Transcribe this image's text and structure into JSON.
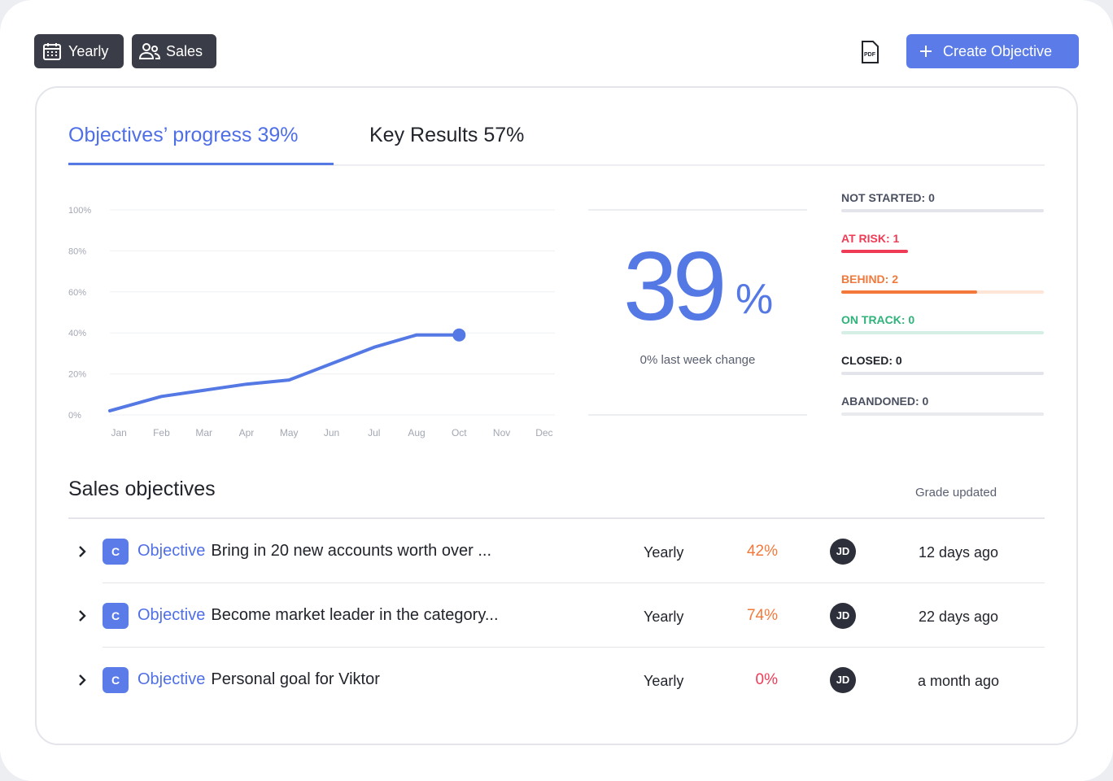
{
  "toolbar": {
    "filters": [
      "Yearly",
      "Sales"
    ],
    "pdf_label": "PDF",
    "create_button": "Create Objective"
  },
  "tabs": [
    "Objectives’ progress 39%",
    "Key Results 57%"
  ],
  "chart_data": {
    "type": "line",
    "categories": [
      "Jan",
      "Feb",
      "Mar",
      "Apr",
      "May",
      "Jun",
      "Jul",
      "Aug",
      "Oct",
      "Nov",
      "Dec"
    ],
    "values": [
      2,
      9,
      12,
      15,
      17,
      25,
      33,
      39,
      39,
      null,
      null
    ],
    "color": "#5478e4",
    "ylim": [
      0,
      100
    ],
    "yticks": [
      {
        "value": 0,
        "label": "0%"
      },
      {
        "value": 20,
        "label": "20%"
      },
      {
        "value": 40,
        "label": "40%"
      },
      {
        "value": 60,
        "label": "60%"
      },
      {
        "value": 80,
        "label": "80%"
      },
      {
        "value": 100,
        "label": "100%"
      }
    ],
    "grid": true
  },
  "summary": {
    "big_value": "39",
    "big_unit": "%",
    "change_label": "0% last week change"
  },
  "statuses": [
    {
      "label": "NOT STARTED: 0",
      "share": 0,
      "color": "#4b5060",
      "track": "#e3e5ea"
    },
    {
      "label": "AT RISK: 1",
      "share": 33,
      "color": "#ef3b55",
      "track": "#ffffff"
    },
    {
      "label": "BEHIND: 2",
      "share": 67,
      "color": "#f2793b",
      "track": "#fde6d8"
    },
    {
      "label": "ON TRACK: 0",
      "share": 0,
      "color": "#2fb37a",
      "track": "#d6efe4"
    },
    {
      "label": "CLOSED: 0",
      "share": 0,
      "color": "#22242c",
      "track": "#e3e5ea"
    },
    {
      "label": "ABANDONED: 0",
      "share": 0,
      "color": "#4b5060",
      "track": "#e8eaee"
    }
  ],
  "table": {
    "title": "Sales objectives",
    "column_header": "Grade updated",
    "rows": [
      {
        "badge": "C",
        "kind": "Objective",
        "title": "Bring in 20 new accounts worth over ...",
        "period": "Yearly",
        "progress": "42%",
        "progress_color": "#f2793b",
        "owner": "JD",
        "updated": "12 days ago"
      },
      {
        "badge": "C",
        "kind": "Objective",
        "title": "Become market leader in the category...",
        "period": "Yearly",
        "progress": "74%",
        "progress_color": "#f2793b",
        "owner": "JD",
        "updated": "22 days ago"
      },
      {
        "badge": "C",
        "kind": "Objective",
        "title": "Personal goal for Viktor",
        "period": "Yearly",
        "progress": "0%",
        "progress_color": "#ef3b55",
        "owner": "JD",
        "updated": "a month ago"
      }
    ]
  }
}
